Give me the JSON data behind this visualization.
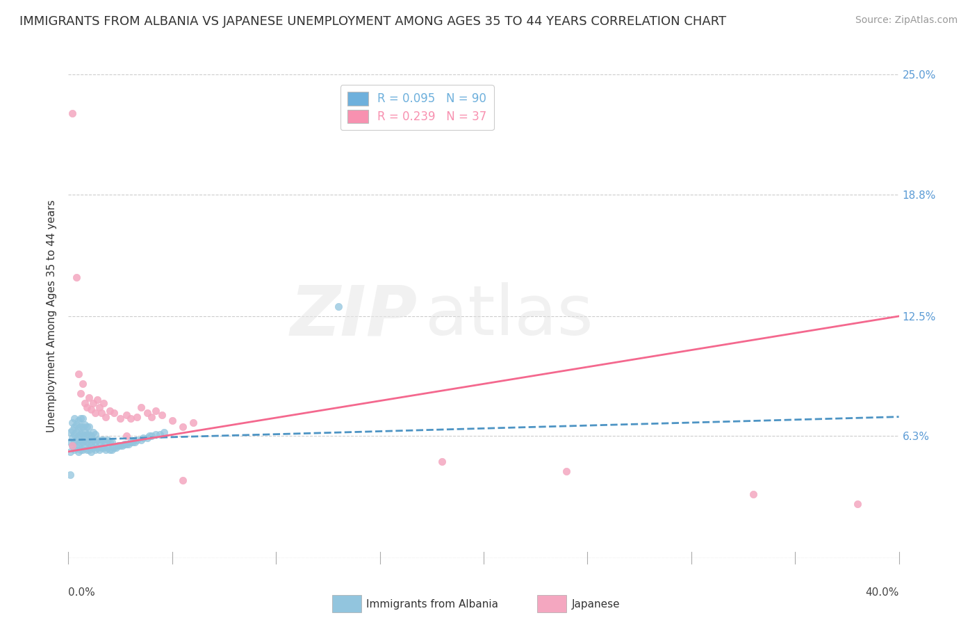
{
  "title": "IMMIGRANTS FROM ALBANIA VS JAPANESE UNEMPLOYMENT AMONG AGES 35 TO 44 YEARS CORRELATION CHART",
  "source": "Source: ZipAtlas.com",
  "ylabel": "Unemployment Among Ages 35 to 44 years",
  "xlim": [
    0,
    0.4
  ],
  "ylim": [
    0,
    0.25
  ],
  "yticks": [
    0.0,
    0.063,
    0.125,
    0.188,
    0.25
  ],
  "ytick_labels": [
    "",
    "6.3%",
    "12.5%",
    "18.8%",
    "25.0%"
  ],
  "xtick_left_label": "0.0%",
  "xtick_right_label": "40.0%",
  "legend_entries": [
    {
      "label": "R = 0.095   N = 90",
      "color": "#6eb0dc"
    },
    {
      "label": "R = 0.239   N = 37",
      "color": "#f891b0"
    }
  ],
  "series_albania": {
    "color": "#92c5de",
    "alpha": 0.75,
    "x": [
      0.001,
      0.001,
      0.001,
      0.002,
      0.002,
      0.002,
      0.002,
      0.003,
      0.003,
      0.003,
      0.003,
      0.003,
      0.004,
      0.004,
      0.004,
      0.004,
      0.005,
      0.005,
      0.005,
      0.005,
      0.005,
      0.006,
      0.006,
      0.006,
      0.006,
      0.006,
      0.007,
      0.007,
      0.007,
      0.007,
      0.007,
      0.008,
      0.008,
      0.008,
      0.008,
      0.009,
      0.009,
      0.009,
      0.009,
      0.01,
      0.01,
      0.01,
      0.01,
      0.011,
      0.011,
      0.011,
      0.012,
      0.012,
      0.012,
      0.013,
      0.013,
      0.013,
      0.014,
      0.014,
      0.015,
      0.015,
      0.016,
      0.016,
      0.017,
      0.017,
      0.018,
      0.018,
      0.019,
      0.019,
      0.02,
      0.02,
      0.021,
      0.021,
      0.022,
      0.023,
      0.024,
      0.025,
      0.026,
      0.027,
      0.028,
      0.029,
      0.03,
      0.031,
      0.032,
      0.033,
      0.035,
      0.036,
      0.038,
      0.039,
      0.04,
      0.042,
      0.044,
      0.046,
      0.13,
      0.001
    ],
    "y": [
      0.055,
      0.06,
      0.065,
      0.058,
      0.062,
      0.066,
      0.07,
      0.056,
      0.06,
      0.064,
      0.068,
      0.072,
      0.057,
      0.061,
      0.065,
      0.069,
      0.055,
      0.059,
      0.063,
      0.067,
      0.071,
      0.056,
      0.06,
      0.064,
      0.068,
      0.072,
      0.056,
      0.06,
      0.064,
      0.068,
      0.072,
      0.057,
      0.061,
      0.065,
      0.069,
      0.056,
      0.06,
      0.064,
      0.068,
      0.056,
      0.06,
      0.064,
      0.068,
      0.055,
      0.059,
      0.063,
      0.057,
      0.061,
      0.065,
      0.056,
      0.06,
      0.064,
      0.057,
      0.061,
      0.056,
      0.06,
      0.057,
      0.061,
      0.057,
      0.061,
      0.056,
      0.06,
      0.057,
      0.061,
      0.056,
      0.06,
      0.056,
      0.06,
      0.057,
      0.057,
      0.058,
      0.058,
      0.058,
      0.059,
      0.059,
      0.059,
      0.06,
      0.06,
      0.06,
      0.061,
      0.061,
      0.062,
      0.062,
      0.063,
      0.063,
      0.064,
      0.064,
      0.065,
      0.13,
      0.043
    ]
  },
  "series_japanese": {
    "color": "#f4a7c0",
    "alpha": 0.85,
    "x": [
      0.002,
      0.004,
      0.005,
      0.006,
      0.007,
      0.008,
      0.009,
      0.01,
      0.011,
      0.012,
      0.013,
      0.014,
      0.015,
      0.016,
      0.017,
      0.018,
      0.02,
      0.022,
      0.025,
      0.028,
      0.03,
      0.033,
      0.035,
      0.038,
      0.04,
      0.042,
      0.045,
      0.05,
      0.055,
      0.06,
      0.18,
      0.24,
      0.33,
      0.38,
      0.002,
      0.028,
      0.055
    ],
    "y": [
      0.23,
      0.145,
      0.095,
      0.085,
      0.09,
      0.08,
      0.078,
      0.083,
      0.077,
      0.08,
      0.075,
      0.082,
      0.078,
      0.075,
      0.08,
      0.073,
      0.076,
      0.075,
      0.072,
      0.074,
      0.072,
      0.073,
      0.078,
      0.075,
      0.073,
      0.076,
      0.074,
      0.071,
      0.068,
      0.07,
      0.05,
      0.045,
      0.033,
      0.028,
      0.058,
      0.063,
      0.04
    ]
  },
  "trendline_albania": {
    "x_start": 0.0,
    "x_end": 0.4,
    "y_start": 0.061,
    "y_end": 0.073,
    "color": "#4d94c4",
    "linestyle": "--"
  },
  "trendline_japanese": {
    "x_start": 0.0,
    "x_end": 0.4,
    "y_start": 0.055,
    "y_end": 0.125,
    "color": "#f4688e",
    "linestyle": "-"
  },
  "watermark_zip": "ZIP",
  "watermark_atlas": "atlas",
  "background_color": "#ffffff",
  "grid_color": "#cccccc",
  "title_fontsize": 13,
  "axis_label_fontsize": 11,
  "tick_fontsize": 11,
  "legend_fontsize": 12,
  "source_fontsize": 10
}
